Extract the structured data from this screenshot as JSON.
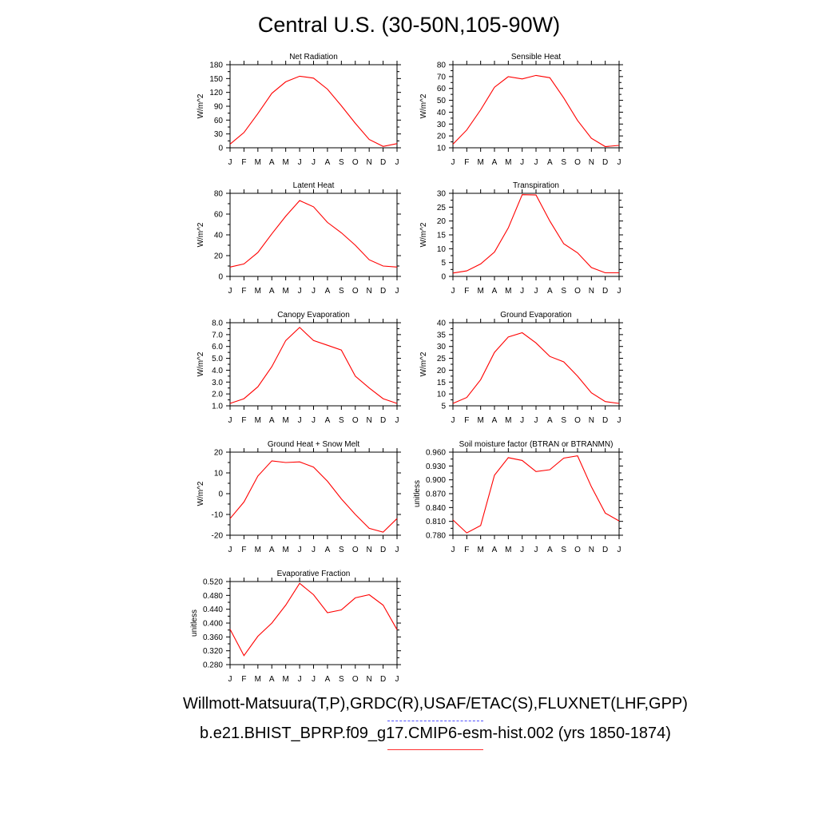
{
  "page": {
    "title": "Central U.S. (30-50N,105-90W)",
    "footer_obs": "Willmott-Matsuura(T,P),GRDC(R),USAF/ETAC(S),FLUXNET(LHF,GPP)",
    "footer_model": "b.e21.BHIST_BPRP.f09_g17.CMIP6-esm-hist.002 (yrs 1850-1874)",
    "obs_line_color": "#5050ff",
    "model_line_color": "#ff0000"
  },
  "chart_data": [
    {
      "type": "line",
      "title": "Net Radiation",
      "ylabel": "W/m^2",
      "categories": [
        "J",
        "F",
        "M",
        "A",
        "M",
        "J",
        "J",
        "A",
        "S",
        "O",
        "N",
        "D",
        "J"
      ],
      "values": [
        8,
        33,
        74,
        118,
        143,
        155,
        151,
        127,
        91,
        53,
        18,
        3,
        9
      ],
      "ylim": [
        0,
        180
      ],
      "yticks": [
        "0",
        "30",
        "60",
        "90",
        "120",
        "150",
        "180"
      ],
      "color": "#ff0000"
    },
    {
      "type": "line",
      "title": "Sensible Heat",
      "ylabel": "W/m^2",
      "categories": [
        "J",
        "F",
        "M",
        "A",
        "M",
        "J",
        "J",
        "A",
        "S",
        "O",
        "N",
        "D",
        "J"
      ],
      "values": [
        13,
        25,
        42,
        61,
        70,
        68,
        71,
        69,
        52,
        33,
        18,
        11,
        12
      ],
      "ylim": [
        10,
        80
      ],
      "yticks": [
        "10",
        "20",
        "30",
        "40",
        "50",
        "60",
        "70",
        "80"
      ],
      "color": "#ff0000"
    },
    {
      "type": "line",
      "title": "Latent Heat",
      "ylabel": "W/m^2",
      "categories": [
        "J",
        "F",
        "M",
        "A",
        "M",
        "J",
        "J",
        "A",
        "S",
        "O",
        "N",
        "D",
        "J"
      ],
      "values": [
        9,
        12,
        23,
        41,
        58,
        73,
        67,
        52,
        42,
        30,
        16,
        10,
        9
      ],
      "ylim": [
        0,
        80
      ],
      "yticks": [
        "0",
        "20",
        "40",
        "60",
        "80"
      ],
      "color": "#ff0000"
    },
    {
      "type": "line",
      "title": "Transpiration",
      "ylabel": "W/m^2",
      "categories": [
        "J",
        "F",
        "M",
        "A",
        "M",
        "J",
        "J",
        "A",
        "S",
        "O",
        "N",
        "D",
        "J"
      ],
      "values": [
        1.2,
        2,
        4.5,
        8.8,
        17.5,
        29.5,
        29.4,
        20,
        11.8,
        8.5,
        3.2,
        1.3,
        1.3
      ],
      "ylim": [
        0,
        30
      ],
      "yticks": [
        "0",
        "5",
        "10",
        "15",
        "20",
        "25",
        "30"
      ],
      "color": "#ff0000"
    },
    {
      "type": "line",
      "title": "Canopy Evaporation",
      "ylabel": "W/m^2",
      "categories": [
        "J",
        "F",
        "M",
        "A",
        "M",
        "J",
        "J",
        "A",
        "S",
        "O",
        "N",
        "D",
        "J"
      ],
      "values": [
        1.2,
        1.6,
        2.6,
        4.3,
        6.5,
        7.6,
        6.5,
        6.1,
        5.7,
        3.5,
        2.5,
        1.6,
        1.2
      ],
      "ylim": [
        1.0,
        8.0
      ],
      "yticks": [
        "1.0",
        "2.0",
        "3.0",
        "4.0",
        "5.0",
        "6.0",
        "7.0",
        "8.0"
      ],
      "color": "#ff0000"
    },
    {
      "type": "line",
      "title": "Ground Evaporation",
      "ylabel": "W/m^2",
      "categories": [
        "J",
        "F",
        "M",
        "A",
        "M",
        "J",
        "J",
        "A",
        "S",
        "O",
        "N",
        "D",
        "J"
      ],
      "values": [
        6,
        8.5,
        16,
        27.5,
        34,
        35.8,
        31.5,
        25.8,
        23.5,
        17.5,
        10.5,
        6.8,
        6
      ],
      "ylim": [
        5,
        40
      ],
      "yticks": [
        "5",
        "10",
        "15",
        "20",
        "25",
        "30",
        "35",
        "40"
      ],
      "color": "#ff0000"
    },
    {
      "type": "line",
      "title": "Ground Heat + Snow Melt",
      "ylabel": "W/m^2",
      "categories": [
        "J",
        "F",
        "M",
        "A",
        "M",
        "J",
        "J",
        "A",
        "S",
        "O",
        "N",
        "D",
        "J"
      ],
      "values": [
        -12,
        -4,
        8.5,
        15.8,
        15,
        15.3,
        12.8,
        6,
        -2.5,
        -10,
        -16.7,
        -18.5,
        -12
      ],
      "ylim": [
        -20,
        20
      ],
      "yticks": [
        "-20",
        "-10",
        "0",
        "10",
        "20"
      ],
      "color": "#ff0000"
    },
    {
      "type": "line",
      "title": "Soil moisture factor (BTRAN or BTRANMN)",
      "ylabel": "unitless",
      "categories": [
        "J",
        "F",
        "M",
        "A",
        "M",
        "J",
        "J",
        "A",
        "S",
        "O",
        "N",
        "D",
        "J"
      ],
      "values": [
        0.813,
        0.785,
        0.801,
        0.91,
        0.948,
        0.942,
        0.918,
        0.922,
        0.947,
        0.952,
        0.885,
        0.828,
        0.811
      ],
      "ylim": [
        0.78,
        0.96
      ],
      "yticks": [
        "0.780",
        "0.810",
        "0.840",
        "0.870",
        "0.900",
        "0.930",
        "0.960"
      ],
      "color": "#ff0000"
    },
    {
      "type": "line",
      "title": "Evaporative Fraction",
      "ylabel": "unitless",
      "categories": [
        "J",
        "F",
        "M",
        "A",
        "M",
        "J",
        "J",
        "A",
        "S",
        "O",
        "N",
        "D",
        "J"
      ],
      "values": [
        0.382,
        0.306,
        0.362,
        0.4,
        0.452,
        0.515,
        0.482,
        0.43,
        0.438,
        0.473,
        0.482,
        0.452,
        0.381
      ],
      "ylim": [
        0.28,
        0.52
      ],
      "yticks": [
        "0.280",
        "0.320",
        "0.360",
        "0.400",
        "0.440",
        "0.480",
        "0.520"
      ],
      "color": "#ff0000"
    }
  ]
}
